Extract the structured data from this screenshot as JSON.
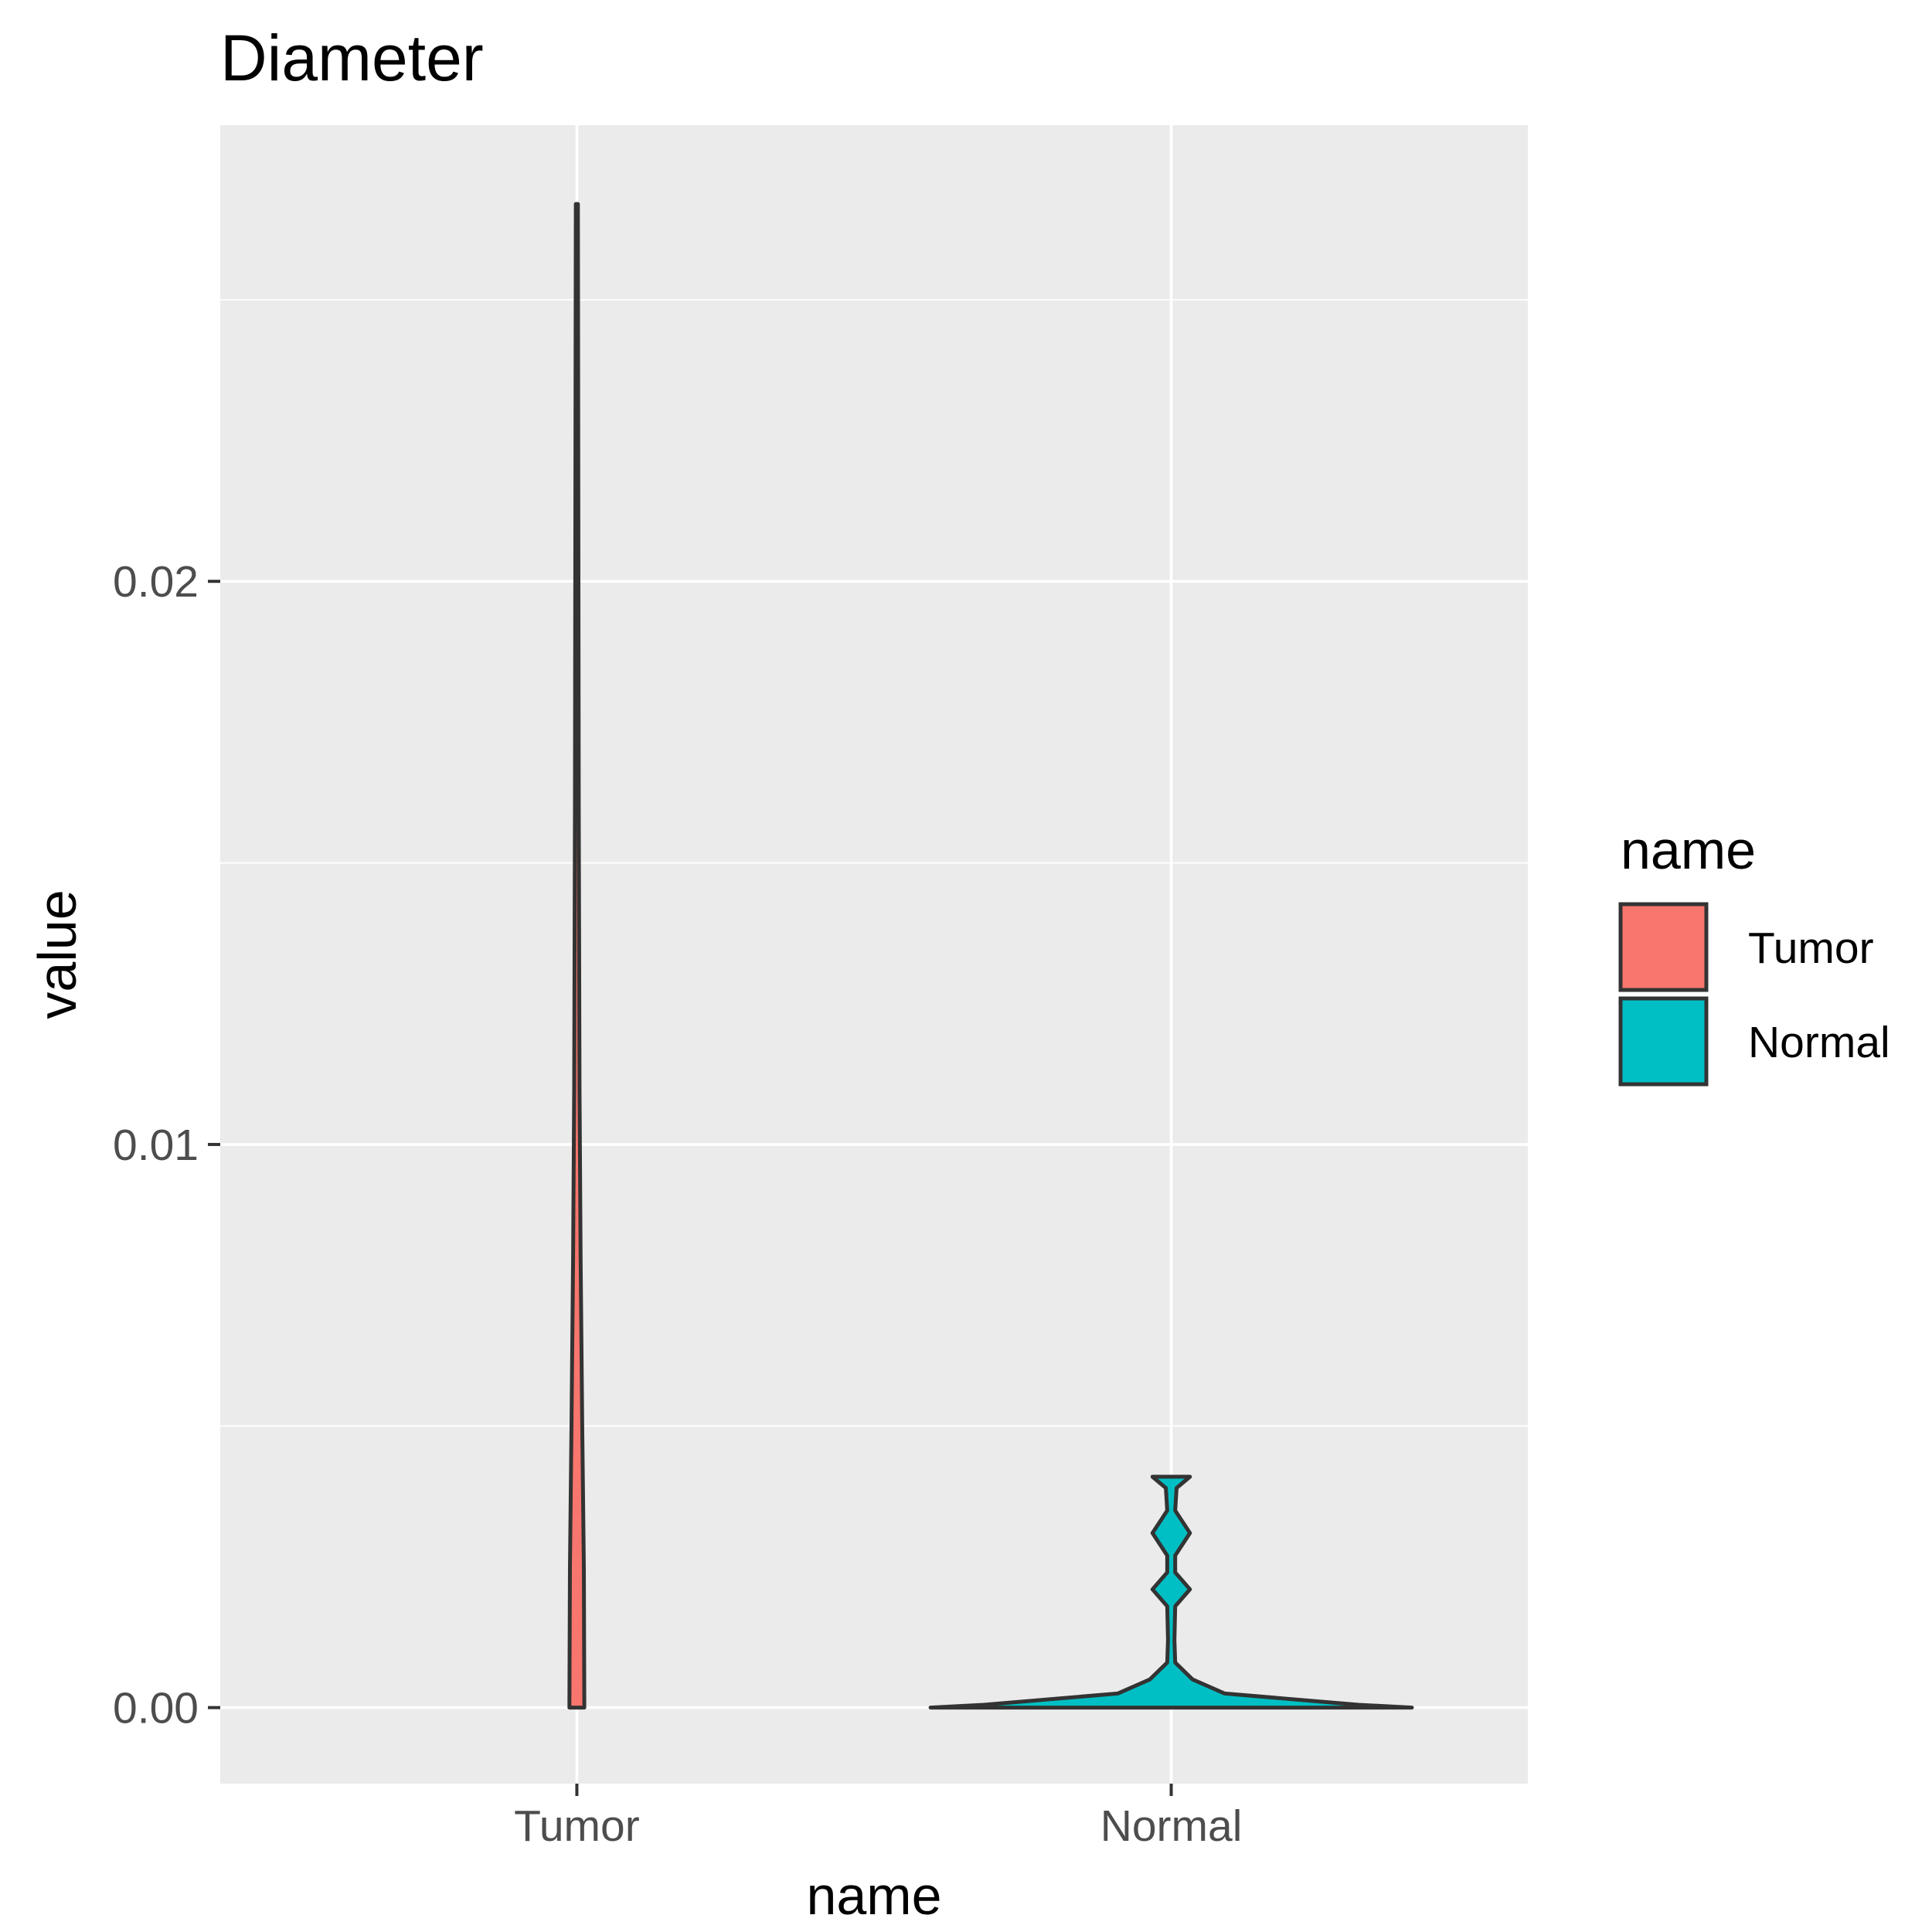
{
  "chart_data": {
    "type": "violin",
    "title": "Diameter",
    "xlabel": "name",
    "ylabel": "value",
    "categories": [
      "Tumor",
      "Normal"
    ],
    "ylim": [
      -0.00135,
      0.0281
    ],
    "y_ticks": [
      {
        "value": 0.0,
        "label": "0.00"
      },
      {
        "value": 0.01,
        "label": "0.01"
      },
      {
        "value": 0.02,
        "label": "0.02"
      }
    ],
    "y_minor_ticks": [
      0.005,
      0.015,
      0.025
    ],
    "grid": true,
    "legend": {
      "title": "name",
      "position": "right",
      "entries": [
        {
          "label": "Tumor",
          "color": "#F8766D"
        },
        {
          "label": "Normal",
          "color": "#00BFC4"
        }
      ]
    },
    "series": [
      {
        "name": "Tumor",
        "color": "#F8766D",
        "min": 0.0,
        "max": 0.0267,
        "density_profile": [
          {
            "value": 0.0,
            "half_width": 0.028
          },
          {
            "value": 0.0025,
            "half_width": 0.026
          },
          {
            "value": 0.005,
            "half_width": 0.02
          },
          {
            "value": 0.008,
            "half_width": 0.014
          },
          {
            "value": 0.011,
            "half_width": 0.01
          },
          {
            "value": 0.016,
            "half_width": 0.007
          },
          {
            "value": 0.02,
            "half_width": 0.006
          },
          {
            "value": 0.0267,
            "half_width": 0.004
          }
        ]
      },
      {
        "name": "Normal",
        "color": "#00BFC4",
        "min": 0.0,
        "max": 0.0041,
        "density_profile": [
          {
            "value": 0.0,
            "half_width": 0.9
          },
          {
            "value": 5e-05,
            "half_width": 0.7
          },
          {
            "value": 0.00025,
            "half_width": 0.2
          },
          {
            "value": 0.0005,
            "half_width": 0.08
          },
          {
            "value": 0.0008,
            "half_width": 0.015
          },
          {
            "value": 0.0012,
            "half_width": 0.012
          },
          {
            "value": 0.0018,
            "half_width": 0.015
          },
          {
            "value": 0.0021,
            "half_width": 0.07
          },
          {
            "value": 0.0024,
            "half_width": 0.015
          },
          {
            "value": 0.0027,
            "half_width": 0.015
          },
          {
            "value": 0.0031,
            "half_width": 0.07
          },
          {
            "value": 0.0035,
            "half_width": 0.015
          },
          {
            "value": 0.0039,
            "half_width": 0.02
          },
          {
            "value": 0.0041,
            "half_width": 0.07
          }
        ]
      }
    ],
    "colors": {
      "panel_background": "#EBEBEB",
      "grid_major": "#FFFFFF",
      "outline": "#333333"
    }
  }
}
